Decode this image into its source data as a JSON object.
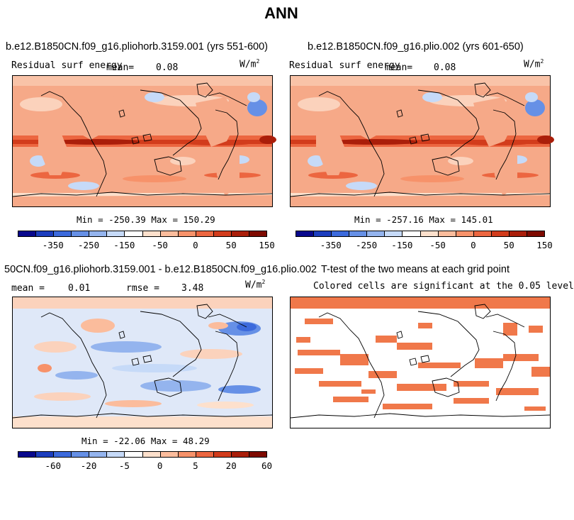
{
  "title": "ANN",
  "panels": [
    {
      "title": "b.e12.B1850CN.f09_g16.pliohorb.3159.001 (yrs 551-600)",
      "variable": "Residual surf energy",
      "mean_label": "mean=",
      "mean_value": "0.08",
      "units_base": "W/m",
      "units_exp": "2",
      "minmax": "Min = -250.39 Max = 150.29",
      "colorbar_ticks": [
        "-350",
        "-250",
        "-150",
        "-50",
        "0",
        "50",
        "150"
      ]
    },
    {
      "title": "b.e12.B1850CN.f09_g16.plio.002 (yrs 601-650)",
      "variable": "Residual surf energy",
      "mean_label": "mean=",
      "mean_value": "0.08",
      "units_base": "W/m",
      "units_exp": "2",
      "minmax": "Min = -257.16 Max = 145.01",
      "colorbar_ticks": [
        "-350",
        "-250",
        "-150",
        "-50",
        "0",
        "50",
        "150"
      ]
    },
    {
      "title": "50CN.f09_g16.pliohorb.3159.001 - b.e12.B1850CN.f09_g16.plio.002",
      "mean_label": "mean =",
      "mean_value": "0.01",
      "rmse_label": "rmse =",
      "rmse_value": "3.48",
      "units_base": "W/m",
      "units_exp": "2",
      "minmax": "Min = -22.06 Max = 48.29",
      "colorbar_ticks": [
        "-60",
        "-20",
        "-5",
        "0",
        "5",
        "20",
        "60"
      ]
    },
    {
      "title": "T-test of the two means at each grid point",
      "subtitle": "Colored cells are significant at the 0.05 level"
    }
  ],
  "colors": {
    "significant": "#f0784a",
    "palette": [
      "#08088c",
      "#1c3ebe",
      "#3c6adc",
      "#6690e6",
      "#94b4ee",
      "#c6daf8",
      "#ffffff",
      "#fde0cc",
      "#fbbc9c",
      "#f7926a",
      "#ec6640",
      "#d23c1c",
      "#aa1e0a",
      "#7e0a00"
    ]
  },
  "chart_data": [
    {
      "type": "heatmap",
      "title": "b.e12.B1850CN.f09_g16.pliohorb.3159.001 (yrs 551-600)",
      "variable": "Residual surf energy",
      "units": "W/m2",
      "mean": 0.08,
      "min": -250.39,
      "max": 150.29,
      "colorbar_levels": [
        -350,
        -250,
        -150,
        -50,
        0,
        50,
        150
      ]
    },
    {
      "type": "heatmap",
      "title": "b.e12.B1850CN.f09_g16.plio.002 (yrs 601-650)",
      "variable": "Residual surf energy",
      "units": "W/m2",
      "mean": 0.08,
      "min": -257.16,
      "max": 145.01,
      "colorbar_levels": [
        -350,
        -250,
        -150,
        -50,
        0,
        50,
        150
      ]
    },
    {
      "type": "heatmap",
      "title": "50CN.f09_g16.pliohorb.3159.001 - b.e12.B1850CN.f09_g16.plio.002",
      "units": "W/m2",
      "mean": 0.01,
      "rmse": 3.48,
      "min": -22.06,
      "max": 48.29,
      "colorbar_levels": [
        -60,
        -20,
        -5,
        0,
        5,
        20,
        60
      ]
    },
    {
      "type": "heatmap",
      "title": "T-test of the two means at each grid point",
      "subtitle": "Colored cells are significant at the 0.05 level",
      "significance_level": 0.05
    }
  ]
}
